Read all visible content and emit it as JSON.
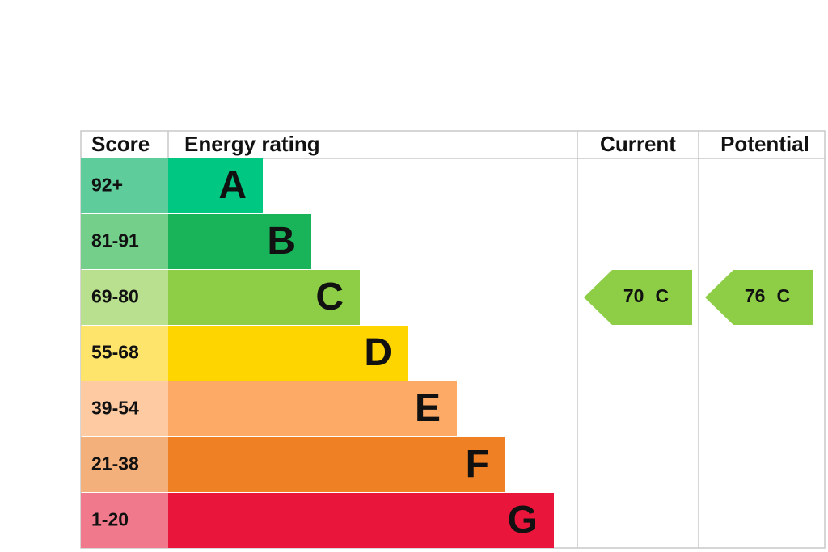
{
  "header": {
    "score": "Score",
    "rating": "Energy rating",
    "current": "Current",
    "potential": "Potential"
  },
  "bands": [
    {
      "score": "92+",
      "letter": "A",
      "color": "#00c781",
      "score_color": "#5fcc9c"
    },
    {
      "score": "81-91",
      "letter": "B",
      "color": "#19b459",
      "score_color": "#74cf8b"
    },
    {
      "score": "69-80",
      "letter": "C",
      "color": "#8dce46",
      "score_color": "#b8e08f"
    },
    {
      "score": "55-68",
      "letter": "D",
      "color": "#ffd500",
      "score_color": "#ffe46c"
    },
    {
      "score": "39-54",
      "letter": "E",
      "color": "#fcaa65",
      "score_color": "#fdcaa2"
    },
    {
      "score": "21-38",
      "letter": "F",
      "color": "#ef8023",
      "score_color": "#f4b07a"
    },
    {
      "score": "1-20",
      "letter": "G",
      "color": "#e9153b",
      "score_color": "#f07a8c"
    }
  ],
  "current": {
    "score": "70",
    "band": "C"
  },
  "potential": {
    "score": "76",
    "band": "C"
  }
}
